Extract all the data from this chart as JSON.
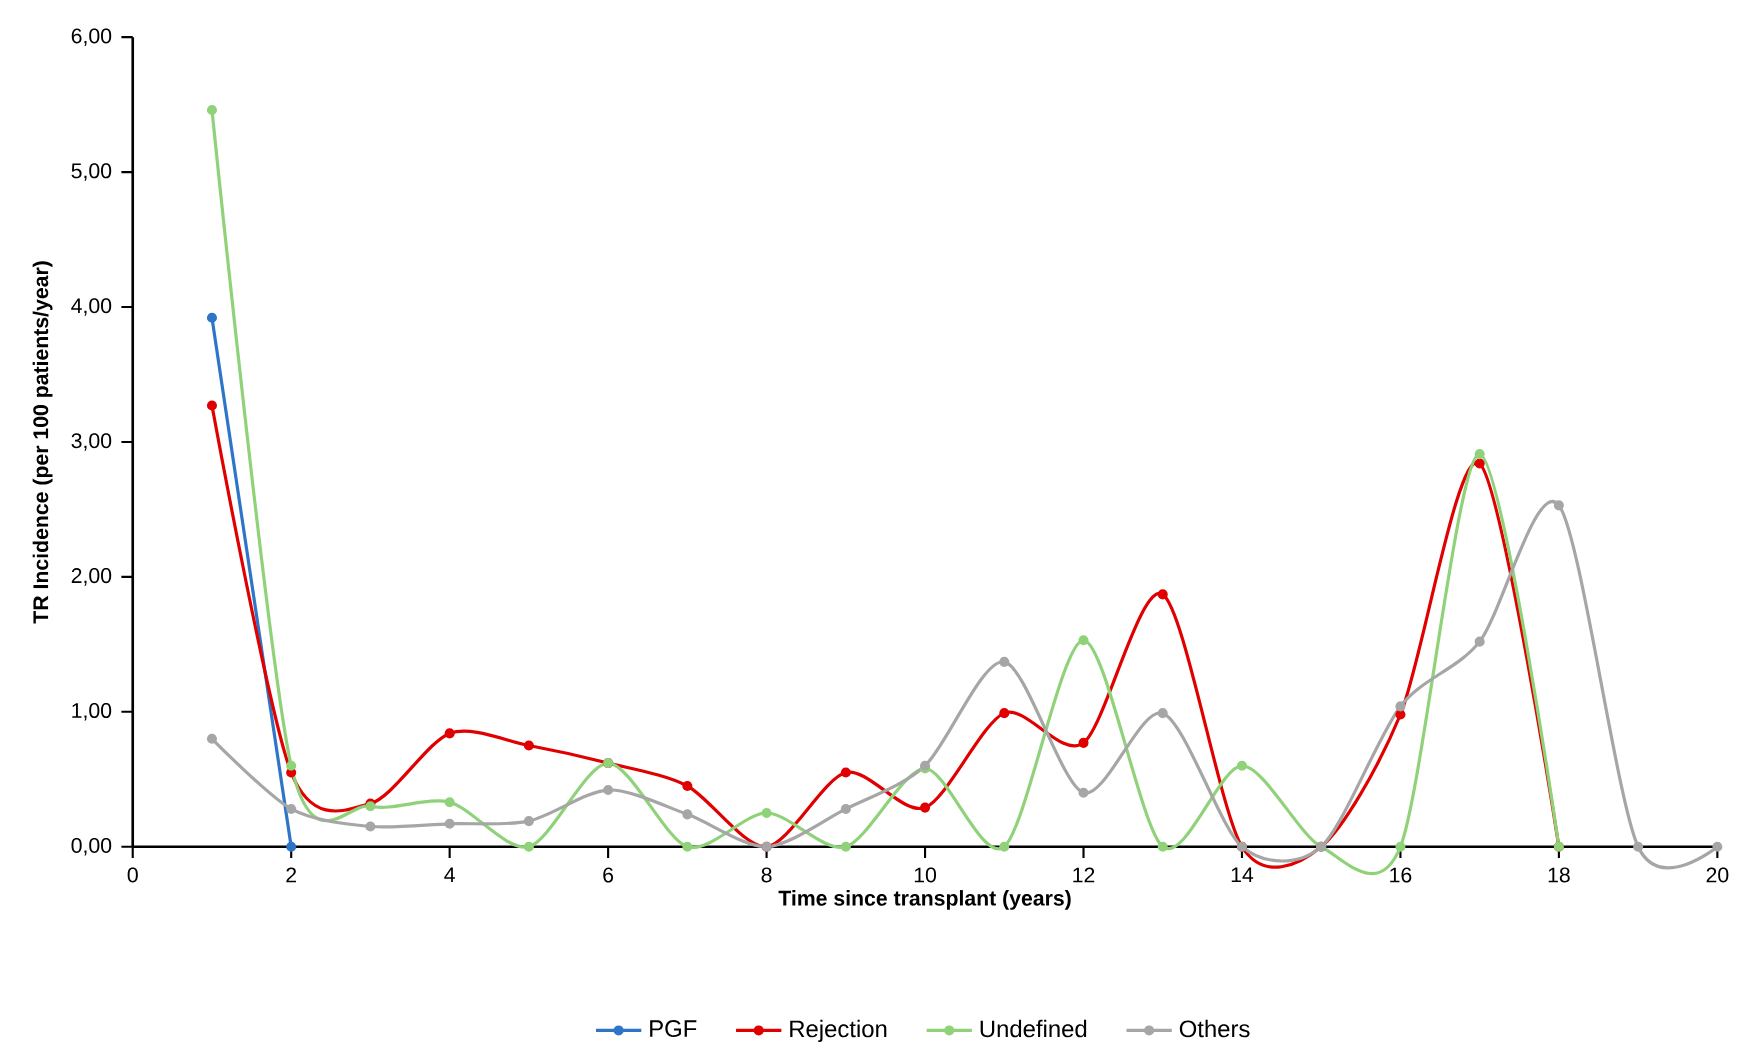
{
  "chart_data": {
    "type": "line",
    "xlabel": "Time since transplant  (years)",
    "ylabel": "TR Incidence (per 100 patients/year)",
    "x": [
      1,
      2,
      3,
      4,
      5,
      6,
      7,
      8,
      9,
      10,
      11,
      12,
      13,
      14,
      15,
      16,
      17,
      18,
      19,
      20
    ],
    "xlim": [
      0,
      20
    ],
    "xticks": [
      0,
      2,
      4,
      6,
      8,
      10,
      12,
      14,
      16,
      18,
      20
    ],
    "ylim": [
      0,
      6
    ],
    "yticks": [
      {
        "value": 0,
        "label": "0,00"
      },
      {
        "value": 1,
        "label": "1,00"
      },
      {
        "value": 2,
        "label": "2,00"
      },
      {
        "value": 3,
        "label": "3,00"
      },
      {
        "value": 4,
        "label": "4,00"
      },
      {
        "value": 5,
        "label": "5,00"
      },
      {
        "value": 6,
        "label": "6,00"
      }
    ],
    "grid": false,
    "legend": "bottom",
    "marker": "circle",
    "line_style": "solid",
    "series": [
      {
        "name": "PGF",
        "color": "#2e75c8",
        "x": [
          1,
          2
        ],
        "values": [
          3.92,
          0
        ]
      },
      {
        "name": "Rejection",
        "color": "#e00000",
        "values": [
          3.27,
          0.55,
          0.32,
          0.84,
          0.75,
          0.62,
          0.45,
          0,
          0.55,
          0.29,
          0.99,
          0.77,
          1.87,
          0,
          0,
          0.98,
          2.84,
          0,
          null,
          null
        ]
      },
      {
        "name": "Undefined",
        "color": "#8fd27a",
        "values": [
          5.46,
          0.6,
          0.3,
          0.33,
          0,
          0.62,
          0,
          0.25,
          0,
          0.58,
          0,
          1.53,
          0,
          0.6,
          0,
          0,
          2.91,
          0,
          null,
          null
        ]
      },
      {
        "name": "Others",
        "color": "#a6a6a6",
        "values": [
          0.8,
          0.28,
          0.15,
          0.17,
          0.19,
          0.42,
          0.24,
          0,
          0.28,
          0.6,
          1.37,
          0.4,
          0.99,
          0,
          0,
          1.04,
          1.52,
          2.53,
          0,
          0
        ]
      }
    ]
  }
}
